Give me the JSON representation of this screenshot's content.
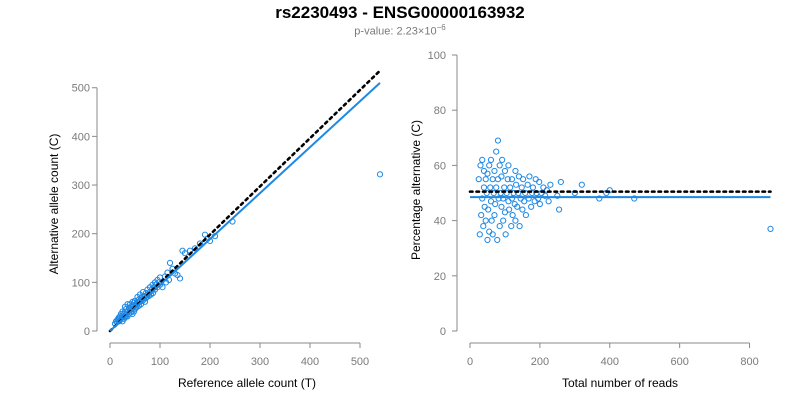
{
  "title": "rs2230493 - ENSG00000163932",
  "subtitle": {
    "prefix": "p-value: 2.23×10",
    "exponent": "−6"
  },
  "colors": {
    "points": "#1e88e5",
    "fit_line": "#1e88e5",
    "reference_line": "#000000",
    "axes": "#8a8a8a"
  },
  "chart_data": [
    {
      "type": "scatter",
      "xlabel": "Reference allele count (T)",
      "ylabel": "Alternative allele count (C)",
      "xlim": [
        0,
        550
      ],
      "ylim": [
        0,
        520
      ],
      "xticks": [
        0,
        100,
        200,
        300,
        400,
        500
      ],
      "yticks": [
        0,
        100,
        200,
        300,
        400,
        500
      ],
      "reference_line": {
        "style": "dotted",
        "x": [
          0,
          540
        ],
        "y": [
          0,
          535
        ]
      },
      "fit_line": {
        "style": "solid",
        "x": [
          0,
          540
        ],
        "y": [
          0,
          510
        ]
      },
      "points": [
        [
          10,
          15
        ],
        [
          12,
          20
        ],
        [
          14,
          18
        ],
        [
          15,
          22
        ],
        [
          16,
          25
        ],
        [
          18,
          20
        ],
        [
          18,
          28
        ],
        [
          20,
          22
        ],
        [
          20,
          30
        ],
        [
          22,
          25
        ],
        [
          22,
          35
        ],
        [
          24,
          28
        ],
        [
          25,
          20
        ],
        [
          25,
          40
        ],
        [
          26,
          30
        ],
        [
          28,
          35
        ],
        [
          28,
          25
        ],
        [
          30,
          40
        ],
        [
          30,
          28
        ],
        [
          30,
          50
        ],
        [
          32,
          30
        ],
        [
          32,
          45
        ],
        [
          34,
          38
        ],
        [
          35,
          55
        ],
        [
          35,
          30
        ],
        [
          36,
          40
        ],
        [
          38,
          35
        ],
        [
          38,
          48
        ],
        [
          40,
          42
        ],
        [
          40,
          55
        ],
        [
          42,
          38
        ],
        [
          42,
          50
        ],
        [
          44,
          45
        ],
        [
          45,
          60
        ],
        [
          45,
          35
        ],
        [
          46,
          50
        ],
        [
          48,
          40
        ],
        [
          48,
          58
        ],
        [
          50,
          45
        ],
        [
          50,
          62
        ],
        [
          52,
          55
        ],
        [
          52,
          48
        ],
        [
          54,
          60
        ],
        [
          55,
          50
        ],
        [
          55,
          70
        ],
        [
          56,
          58
        ],
        [
          58,
          52
        ],
        [
          58,
          65
        ],
        [
          60,
          60
        ],
        [
          60,
          75
        ],
        [
          62,
          55
        ],
        [
          62,
          68
        ],
        [
          64,
          70
        ],
        [
          65,
          62
        ],
        [
          66,
          80
        ],
        [
          68,
          65
        ],
        [
          70,
          72
        ],
        [
          70,
          60
        ],
        [
          72,
          78
        ],
        [
          72,
          68
        ],
        [
          74,
          70
        ],
        [
          75,
          85
        ],
        [
          76,
          75
        ],
        [
          78,
          72
        ],
        [
          80,
          80
        ],
        [
          80,
          90
        ],
        [
          82,
          75
        ],
        [
          84,
          85
        ],
        [
          85,
          95
        ],
        [
          86,
          78
        ],
        [
          88,
          90
        ],
        [
          90,
          100
        ],
        [
          90,
          85
        ],
        [
          92,
          95
        ],
        [
          95,
          105
        ],
        [
          95,
          90
        ],
        [
          98,
          100
        ],
        [
          100,
          110
        ],
        [
          100,
          95
        ],
        [
          105,
          90
        ],
        [
          110,
          112
        ],
        [
          112,
          100
        ],
        [
          115,
          120
        ],
        [
          118,
          105
        ],
        [
          120,
          140
        ],
        [
          125,
          128
        ],
        [
          130,
          118
        ],
        [
          135,
          115
        ],
        [
          140,
          108
        ],
        [
          145,
          165
        ],
        [
          150,
          160
        ],
        [
          160,
          165
        ],
        [
          170,
          170
        ],
        [
          180,
          180
        ],
        [
          190,
          198
        ],
        [
          195,
          190
        ],
        [
          200,
          185
        ],
        [
          210,
          195
        ],
        [
          245,
          225
        ],
        [
          540,
          322
        ]
      ]
    },
    {
      "type": "scatter",
      "xlabel": "Total number of reads",
      "ylabel": "Percentage alternative (C)",
      "xlim": [
        0,
        870
      ],
      "ylim": [
        0,
        100
      ],
      "xticks": [
        0,
        200,
        400,
        600,
        800
      ],
      "yticks": [
        0,
        20,
        40,
        60,
        80,
        100
      ],
      "reference_line": {
        "style": "dotted",
        "x": [
          0,
          860
        ],
        "y": [
          50.5,
          50.5
        ]
      },
      "fit_line": {
        "style": "solid",
        "x": [
          0,
          860
        ],
        "y": [
          48.5,
          48.5
        ]
      },
      "points": [
        [
          25,
          55
        ],
        [
          28,
          35
        ],
        [
          30,
          60
        ],
        [
          32,
          42
        ],
        [
          35,
          62
        ],
        [
          35,
          48
        ],
        [
          38,
          38
        ],
        [
          40,
          52
        ],
        [
          40,
          58
        ],
        [
          42,
          45
        ],
        [
          45,
          40
        ],
        [
          45,
          55
        ],
        [
          48,
          50
        ],
        [
          50,
          33
        ],
        [
          50,
          57
        ],
        [
          52,
          44
        ],
        [
          55,
          60
        ],
        [
          55,
          36
        ],
        [
          58,
          52
        ],
        [
          60,
          47
        ],
        [
          60,
          62
        ],
        [
          62,
          40
        ],
        [
          65,
          55
        ],
        [
          65,
          35
        ],
        [
          68,
          50
        ],
        [
          70,
          58
        ],
        [
          70,
          42
        ],
        [
          72,
          46
        ],
        [
          75,
          52
        ],
        [
          75,
          65
        ],
        [
          78,
          33
        ],
        [
          80,
          55
        ],
        [
          80,
          69
        ],
        [
          82,
          48
        ],
        [
          85,
          60
        ],
        [
          85,
          38
        ],
        [
          88,
          50
        ],
        [
          90,
          56
        ],
        [
          90,
          45
        ],
        [
          92,
          62
        ],
        [
          95,
          48
        ],
        [
          95,
          40
        ],
        [
          98,
          52
        ],
        [
          100,
          58
        ],
        [
          100,
          43
        ],
        [
          102,
          35
        ],
        [
          105,
          50
        ],
        [
          108,
          55
        ],
        [
          110,
          47
        ],
        [
          110,
          60
        ],
        [
          112,
          44
        ],
        [
          115,
          52
        ],
        [
          118,
          38
        ],
        [
          120,
          55
        ],
        [
          120,
          48
        ],
        [
          122,
          42
        ],
        [
          125,
          50
        ],
        [
          128,
          46
        ],
        [
          130,
          58
        ],
        [
          130,
          40
        ],
        [
          132,
          53
        ],
        [
          135,
          45
        ],
        [
          138,
          50
        ],
        [
          140,
          56
        ],
        [
          142,
          38
        ],
        [
          145,
          48
        ],
        [
          148,
          52
        ],
        [
          150,
          44
        ],
        [
          152,
          55
        ],
        [
          155,
          47
        ],
        [
          158,
          50
        ],
        [
          160,
          42
        ],
        [
          165,
          53
        ],
        [
          168,
          48
        ],
        [
          170,
          56
        ],
        [
          175,
          45
        ],
        [
          178,
          50
        ],
        [
          180,
          52
        ],
        [
          185,
          47
        ],
        [
          188,
          55
        ],
        [
          190,
          50
        ],
        [
          195,
          48
        ],
        [
          198,
          54
        ],
        [
          200,
          46
        ],
        [
          205,
          50
        ],
        [
          210,
          52
        ],
        [
          215,
          49
        ],
        [
          220,
          51
        ],
        [
          225,
          47
        ],
        [
          230,
          53
        ],
        [
          250,
          49
        ],
        [
          255,
          44
        ],
        [
          260,
          54
        ],
        [
          300,
          50
        ],
        [
          320,
          53
        ],
        [
          370,
          48
        ],
        [
          390,
          50
        ],
        [
          400,
          51
        ],
        [
          470,
          48
        ],
        [
          860,
          37
        ]
      ]
    }
  ]
}
